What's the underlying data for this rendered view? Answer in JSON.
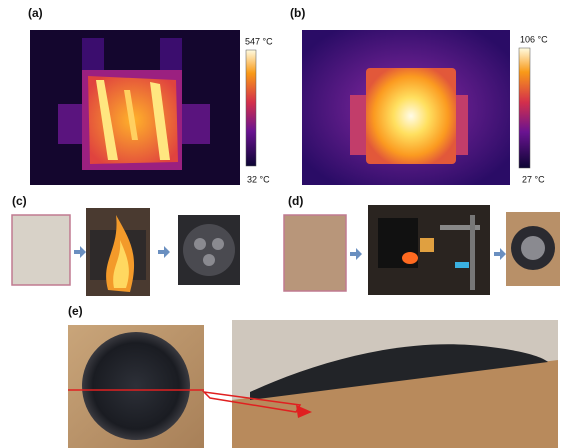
{
  "panels": [
    {
      "label": "(a)",
      "colorbar": {
        "max": "547 °C",
        "min": "32 °C"
      }
    },
    {
      "label": "(b)",
      "colorbar": {
        "max": "106 °C",
        "min": "27 °C"
      }
    },
    {
      "label": "(c)"
    },
    {
      "label": "(d)"
    },
    {
      "label": "(e)"
    }
  ]
}
